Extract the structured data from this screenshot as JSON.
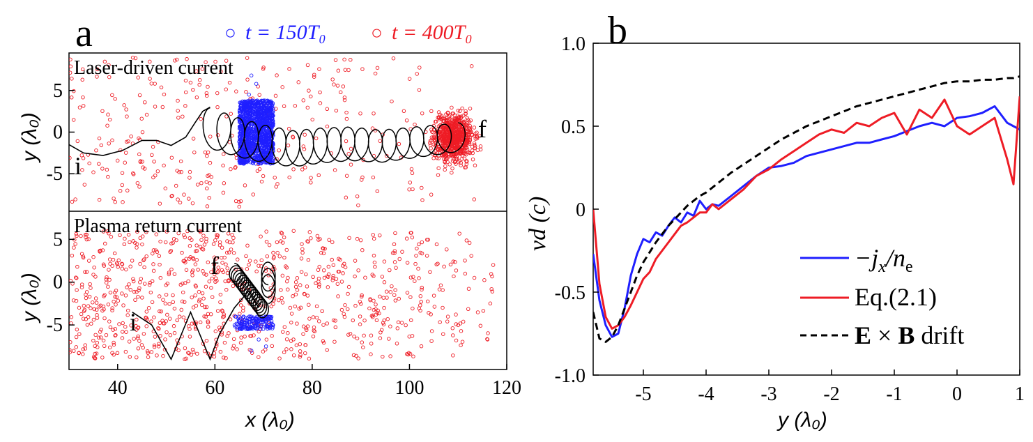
{
  "colors": {
    "blue": "#1f1fff",
    "red": "#ee1c25",
    "black": "#000000"
  },
  "chart_data": [
    {
      "panel": "a",
      "type": "scatter",
      "legend": [
        {
          "marker": "○",
          "label": "t = 150T₀",
          "color": "#1f1fff"
        },
        {
          "marker": "○",
          "label": "t = 400T₀",
          "color": "#ee1c25"
        }
      ],
      "xlabel": "x (λ₀)",
      "xlim": [
        30,
        120
      ],
      "xticks": [
        "40",
        "60",
        "80",
        "100",
        "120"
      ],
      "subplots": [
        {
          "title": "Laser-driven current",
          "ylabel": "y (λ₀)",
          "ylim": [
            -9.5,
            9.5
          ],
          "yticks": [
            "5",
            "0",
            "-5"
          ],
          "start_label": "i",
          "end_label": "f",
          "trajectory_segments": [
            {
              "x": [
                30,
                33,
                37,
                41,
                45,
                48,
                51,
                54,
                56,
                57.5,
                59
              ],
              "y": [
                -1.5,
                -2.5,
                -2.8,
                -2.2,
                -1.0,
                -1.0,
                -1.6,
                -0.6,
                1.2,
                2.5,
                3.0
              ]
            },
            {
              "x": [
                59,
                64,
                70,
                76,
                82,
                88,
                94,
                100,
                106,
                110
              ],
              "y": [
                0.5,
                -0.5,
                -1.4,
                -2.0,
                -1.6,
                -1.4,
                -1.7,
                -1.3,
                -0.9,
                -0.6
              ],
              "loops": true
            }
          ],
          "blue_cluster": {
            "x_range": [
              65,
              72
            ],
            "y_range": [
              -3.8,
              3.8
            ],
            "outliers": [
              [
                67.5,
                6.8
              ],
              [
                68.5,
                5.8
              ],
              [
                67,
                4.5
              ]
            ]
          },
          "red_cluster": {
            "x_range": [
              104,
              114
            ],
            "y_range": [
              -4,
              2.5
            ]
          },
          "red_scatter_extent": {
            "x": [
              30,
              120
            ],
            "y": [
              -9,
              9
            ]
          }
        },
        {
          "title": "Plasma return current",
          "ylabel": "y (λ₀)",
          "ylim": [
            -10.2,
            8.2
          ],
          "yticks": [
            "5",
            "0",
            "-5"
          ],
          "start_label": "i",
          "end_label": "f",
          "trajectory": {
            "x": [
              43,
              47,
              51,
              55,
              59,
              61,
              64,
              67,
              69
            ],
            "y": [
              -3.5,
              -5,
              -9,
              -3.5,
              -9,
              -6,
              -3,
              -1,
              -3
            ]
          },
          "blue_band": {
            "x_range": [
              64,
              72
            ],
            "y_range": [
              -5.5,
              -4
            ]
          },
          "red_scatter_extent": {
            "x": [
              30,
              120
            ],
            "y": [
              -9,
              6
            ]
          }
        }
      ]
    },
    {
      "panel": "b",
      "type": "line",
      "xlabel": "y (λ₀)",
      "ylabel": "vd (c)",
      "xlim": [
        -5.8,
        1.0
      ],
      "ylim": [
        -1.0,
        1.0
      ],
      "xticks": [
        "-5",
        "-4",
        "-3",
        "-2",
        "-1",
        "0",
        "1"
      ],
      "yticks": [
        "1.0",
        "0.5",
        "0",
        "-0.5",
        "-1.0"
      ],
      "x": [
        -5.8,
        -5.7,
        -5.6,
        -5.5,
        -5.4,
        -5.3,
        -5.2,
        -5.1,
        -5.0,
        -4.9,
        -4.8,
        -4.7,
        -4.6,
        -4.5,
        -4.4,
        -4.3,
        -4.2,
        -4.1,
        -4.0,
        -3.9,
        -3.8,
        -3.6,
        -3.4,
        -3.2,
        -3.0,
        -2.8,
        -2.6,
        -2.4,
        -2.2,
        -2.0,
        -1.8,
        -1.6,
        -1.4,
        -1.2,
        -1.0,
        -0.8,
        -0.6,
        -0.4,
        -0.2,
        0.0,
        0.2,
        0.4,
        0.6,
        0.8,
        0.9,
        1.0
      ],
      "series": [
        {
          "name": "−jx/ne",
          "color": "#1f1fff",
          "dash": false,
          "values": [
            -0.27,
            -0.55,
            -0.7,
            -0.77,
            -0.75,
            -0.6,
            -0.4,
            -0.27,
            -0.18,
            -0.2,
            -0.14,
            -0.16,
            -0.1,
            -0.05,
            -0.08,
            -0.02,
            -0.04,
            0.05,
            0.0,
            0.03,
            0.02,
            0.08,
            0.14,
            0.2,
            0.25,
            0.26,
            0.28,
            0.32,
            0.34,
            0.36,
            0.38,
            0.4,
            0.4,
            0.42,
            0.44,
            0.47,
            0.5,
            0.52,
            0.5,
            0.55,
            0.56,
            0.58,
            0.62,
            0.52,
            0.5,
            0.48
          ]
        },
        {
          "name": "Eq.(2.1)",
          "color": "#ee1c25",
          "dash": false,
          "values": [
            0.0,
            -0.45,
            -0.65,
            -0.72,
            -0.7,
            -0.65,
            -0.58,
            -0.5,
            -0.42,
            -0.38,
            -0.3,
            -0.25,
            -0.2,
            -0.15,
            -0.1,
            -0.08,
            -0.05,
            -0.02,
            -0.02,
            0.03,
            0.0,
            0.06,
            0.12,
            0.2,
            0.24,
            0.3,
            0.35,
            0.4,
            0.45,
            0.48,
            0.46,
            0.52,
            0.5,
            0.55,
            0.58,
            0.45,
            0.6,
            0.55,
            0.66,
            0.5,
            0.45,
            0.5,
            0.55,
            0.3,
            0.15,
            0.68
          ]
        },
        {
          "name": "E × B drift",
          "color": "#000000",
          "dash": true,
          "values": [
            -0.62,
            -0.78,
            -0.8,
            -0.77,
            -0.7,
            -0.6,
            -0.5,
            -0.4,
            -0.32,
            -0.26,
            -0.2,
            -0.15,
            -0.1,
            -0.06,
            -0.02,
            0.02,
            0.05,
            0.08,
            0.1,
            0.13,
            0.16,
            0.22,
            0.27,
            0.32,
            0.37,
            0.42,
            0.46,
            0.5,
            0.53,
            0.56,
            0.59,
            0.62,
            0.64,
            0.66,
            0.68,
            0.7,
            0.72,
            0.74,
            0.76,
            0.77,
            0.77,
            0.78,
            0.78,
            0.79,
            0.79,
            0.8
          ]
        }
      ]
    }
  ],
  "panel_labels": {
    "a": "a",
    "b": "b"
  },
  "legend_b": {
    "blue": {
      "text": "−jx/ne",
      "main": "−j",
      "sub1": "x",
      "mid": "/n",
      "sub2": "e"
    },
    "red": {
      "text": "Eq.(2.1)"
    },
    "black": {
      "text": "E × B drift",
      "bold1": "E",
      "op": " × ",
      "bold2": "B",
      "rest": " drift"
    }
  }
}
